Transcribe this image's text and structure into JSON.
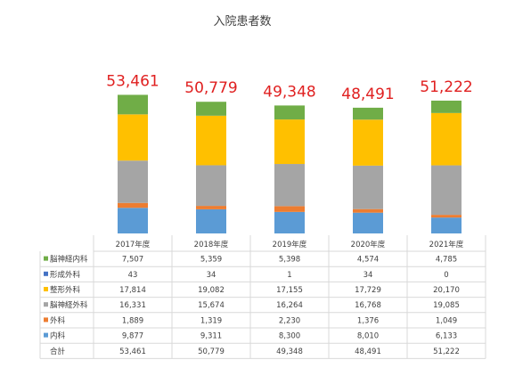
{
  "chart_data": {
    "type": "bar",
    "stacked": true,
    "title": "入院患者数",
    "categories": [
      "2017年度",
      "2018年度",
      "2019年度",
      "2020年度",
      "2021年度"
    ],
    "series": [
      {
        "name": "内科",
        "values": [
          9877,
          9311,
          8300,
          8010,
          6133
        ],
        "color": "#5b9bd5"
      },
      {
        "name": "外科",
        "values": [
          1889,
          1319,
          2230,
          1376,
          1049
        ],
        "color": "#ed7d31"
      },
      {
        "name": "脳神経外科",
        "values": [
          16331,
          15674,
          16264,
          16768,
          19085
        ],
        "color": "#a5a5a5"
      },
      {
        "name": "整形外科",
        "values": [
          17814,
          19082,
          17155,
          17729,
          20170
        ],
        "color": "#ffc000"
      },
      {
        "name": "形成外科",
        "values": [
          43,
          34,
          1,
          34,
          0
        ],
        "color": "#4472c4"
      },
      {
        "name": "脳神経内科",
        "values": [
          7507,
          5359,
          5398,
          4574,
          4785
        ],
        "color": "#70ad47"
      }
    ],
    "totals": {
      "name": "合計",
      "values": [
        53461,
        50779,
        49348,
        48491,
        51222
      ],
      "labels": [
        "53,461",
        "50,779",
        "49,348",
        "48,491",
        "51,222"
      ],
      "label_color": "#e02020"
    },
    "table": {
      "show_data_table": true,
      "row_order": [
        "脳神経内科",
        "形成外科",
        "整形外科",
        "脳神経外科",
        "外科",
        "内科",
        "合計"
      ],
      "rows": [
        {
          "name": "脳神経内科",
          "cells": [
            "7,507",
            "5,359",
            "5,398",
            "4,574",
            "4,785"
          ]
        },
        {
          "name": "形成外科",
          "cells": [
            "43",
            "34",
            "1",
            "34",
            "0"
          ]
        },
        {
          "name": "整形外科",
          "cells": [
            "17,814",
            "19,082",
            "17,155",
            "17,729",
            "20,170"
          ]
        },
        {
          "name": "脳神経外科",
          "cells": [
            "16,331",
            "15,674",
            "16,264",
            "16,768",
            "19,085"
          ]
        },
        {
          "name": "外科",
          "cells": [
            "1,889",
            "1,319",
            "2,230",
            "1,376",
            "1,049"
          ]
        },
        {
          "name": "内科",
          "cells": [
            "9,877",
            "9,311",
            "8,300",
            "8,010",
            "6,133"
          ]
        },
        {
          "name": "合計",
          "cells": [
            "53,461",
            "50,779",
            "49,348",
            "48,491",
            "51,222"
          ]
        }
      ]
    },
    "ylim": [
      0,
      60000
    ],
    "gridlines": false,
    "legend": "in-table"
  }
}
